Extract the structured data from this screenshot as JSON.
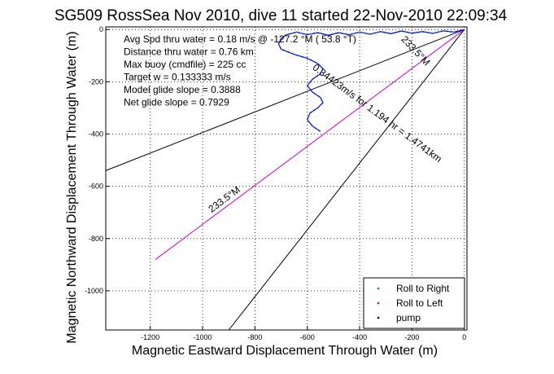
{
  "chart_data": {
    "type": "line",
    "title": "SG509 RossSea Nov 2010, dive 11 started 22-Nov-2010 22:09:34",
    "xlabel": "Magnetic Eastward Displacement Through Water (m)",
    "ylabel": "Magnetic Northward Displacement Through Water (m)",
    "xlim": [
      -1370,
      10
    ],
    "ylim": [
      -1150,
      10
    ],
    "xticks": [
      -1200,
      -1000,
      -800,
      -600,
      -400,
      -200,
      0
    ],
    "yticks": [
      -1000,
      -800,
      -600,
      -400,
      -200,
      0
    ],
    "grid": true,
    "annotations": [
      "Avg Spd thru water =  0.18 m/s @ -127.2  °M ( 53.8 °T)",
      "Distance thru water =  0.76 km",
      "Max buoy (cmdfile) = 225 cc",
      "Target w = 0.133333 m/s",
      "Model glide slope = 0.3888",
      "Net glide slope = 0.7929"
    ],
    "line_labels": [
      {
        "text": "233.5°M",
        "x": -910,
        "y": -660,
        "angle_deg": -36.5
      },
      {
        "text": "233.5°M",
        "x": -195,
        "y": -90,
        "angle_deg": 46.5
      },
      {
        "text": "0.34423m/s for 1.194 hr = 1.4741km",
        "x": -340,
        "y": -330,
        "angle_deg": 36.5
      }
    ],
    "series": [
      {
        "name": "Roll to Right",
        "color": "#00aa00"
      },
      {
        "name": "Roll to Left",
        "color": "#ff0000"
      },
      {
        "name": "pump",
        "color": "#000000"
      }
    ],
    "lines": [
      {
        "style": "black",
        "x": [
          0,
          -1370
        ],
        "y": [
          0,
          -540
        ]
      },
      {
        "style": "black",
        "x": [
          0,
          -900
        ],
        "y": [
          0,
          -1150
        ]
      },
      {
        "style": "magenta",
        "x": [
          0,
          -1180
        ],
        "y": [
          0,
          -880
        ]
      }
    ],
    "track": {
      "x": [
        0,
        -40,
        -80,
        -120,
        -160,
        -200,
        -240,
        -280,
        -320,
        -360,
        -400,
        -440,
        -480,
        -520,
        -560,
        -600,
        -640,
        -680,
        -700,
        -710,
        -700,
        -650,
        -600,
        -560,
        -540,
        -550,
        -580,
        -600,
        -580,
        -550,
        -540,
        -560,
        -590,
        -600,
        -580,
        -550
      ],
      "y": [
        0,
        -10,
        -5,
        -15,
        -8,
        -14,
        -6,
        -16,
        -8,
        -18,
        -10,
        -20,
        -12,
        -22,
        -12,
        -20,
        -10,
        -20,
        -35,
        -55,
        -75,
        -95,
        -110,
        -130,
        -150,
        -170,
        -190,
        -215,
        -240,
        -260,
        -280,
        -300,
        -320,
        -345,
        -370,
        -390
      ]
    },
    "legend_position": "bottom-right"
  }
}
